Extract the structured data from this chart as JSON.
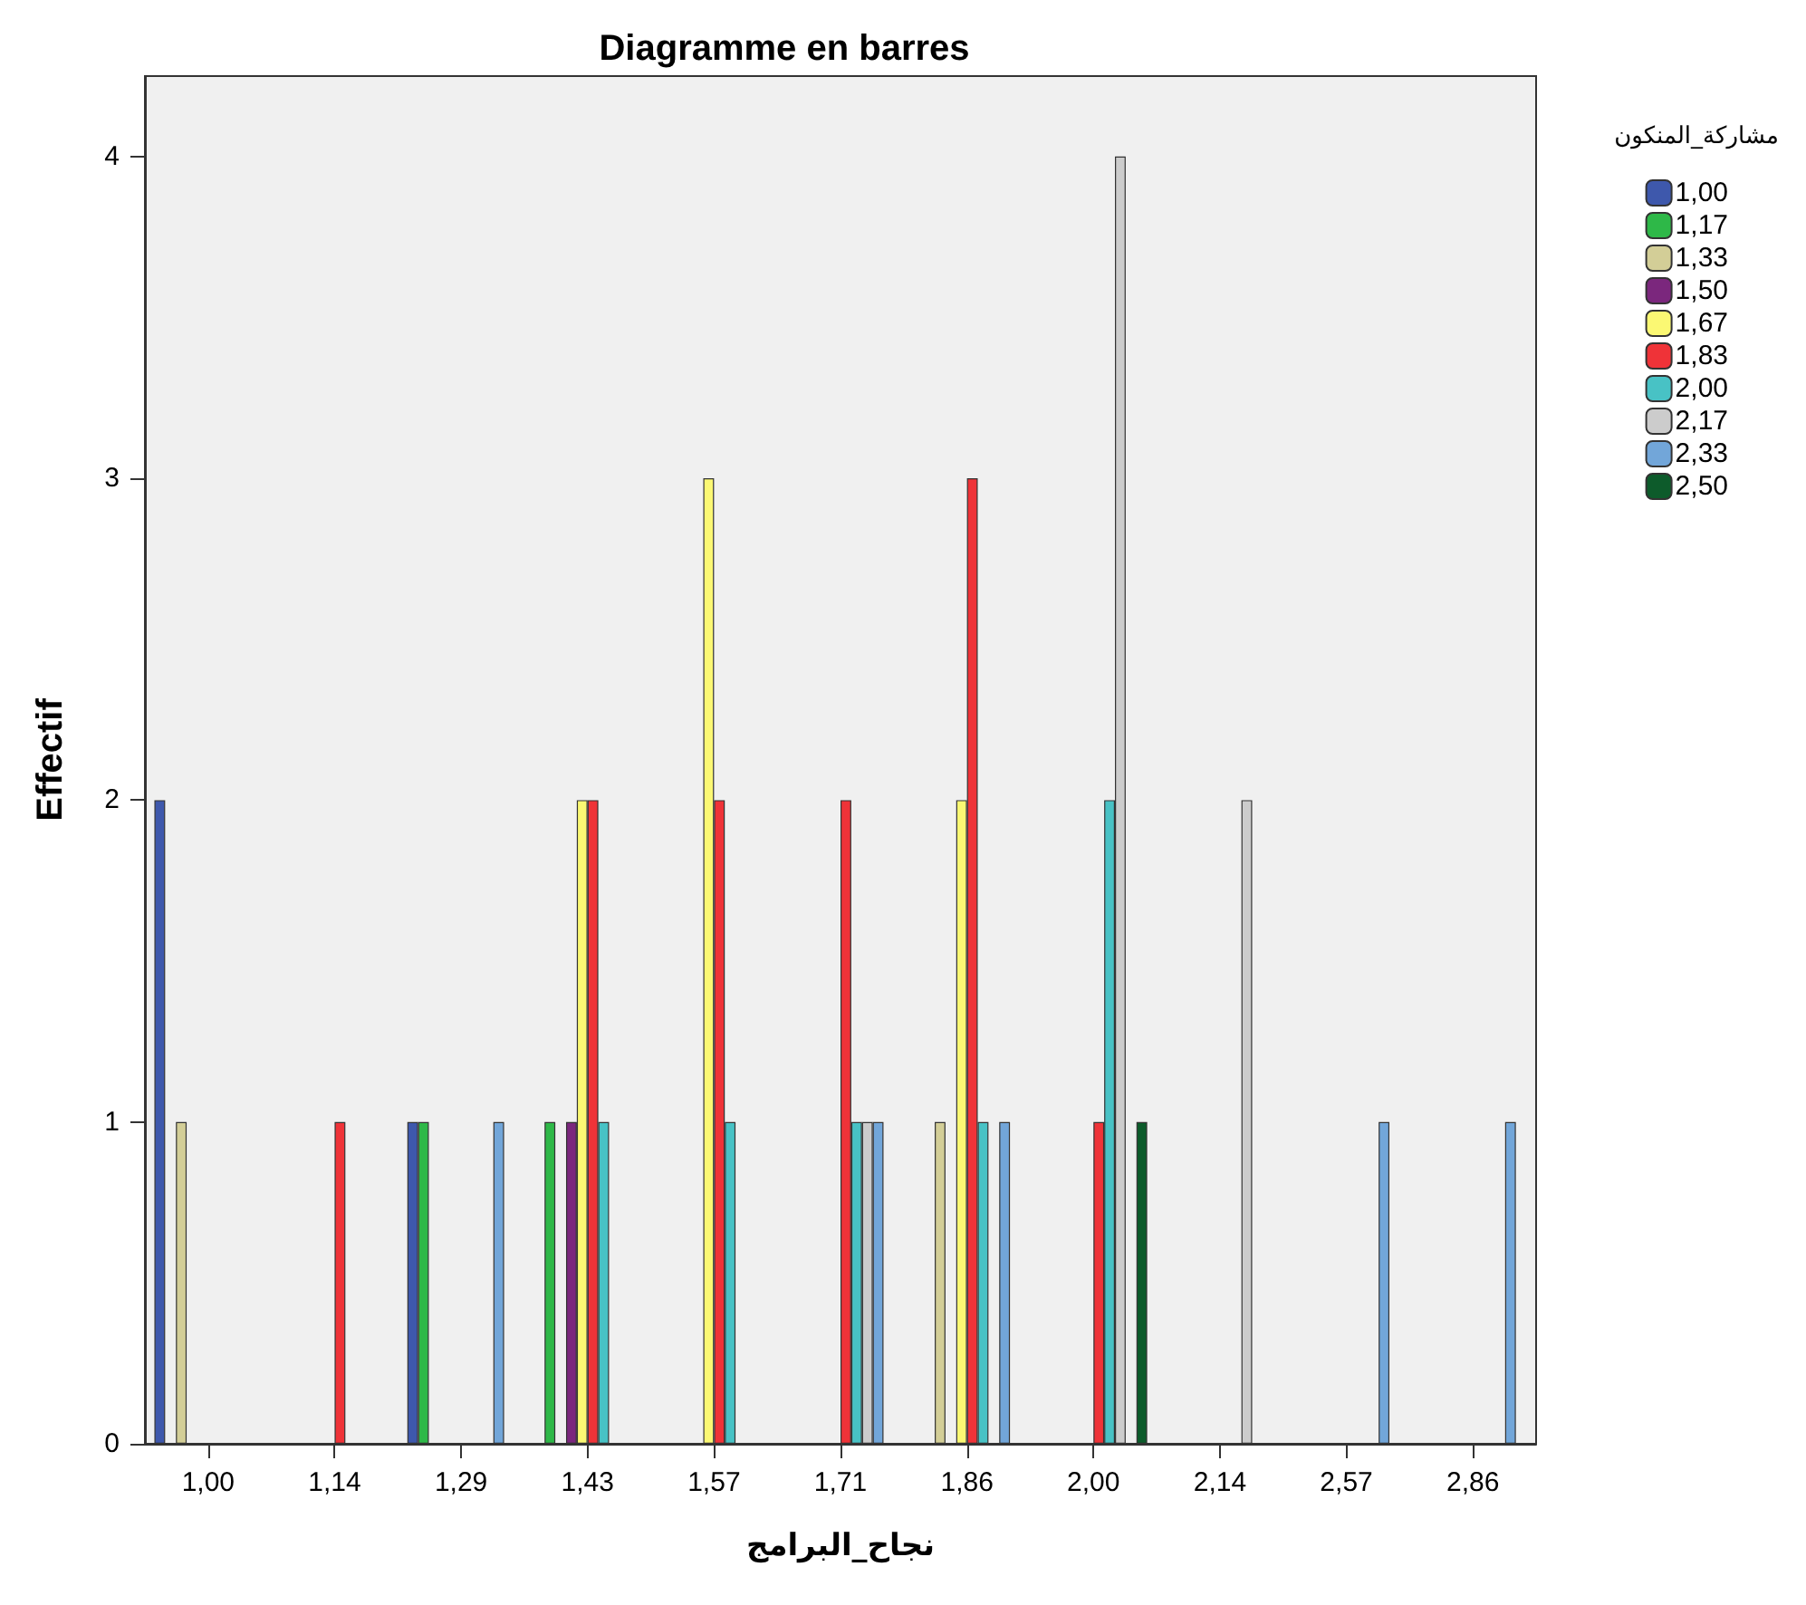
{
  "chart_data": {
    "type": "bar",
    "title": "Diagramme en barres",
    "xlabel": "نجاح_البرامج",
    "ylabel": "Effectif",
    "legend_title": "مشاركة_المنكون",
    "categories": [
      "1,00",
      "1,14",
      "1,29",
      "1,43",
      "1,57",
      "1,71",
      "1,86",
      "2,00",
      "2,14",
      "2,57",
      "2,86"
    ],
    "series": [
      {
        "name": "1,00",
        "color": "#3e58ac",
        "values": [
          2,
          null,
          1,
          null,
          null,
          null,
          null,
          null,
          null,
          null,
          null
        ]
      },
      {
        "name": "1,17",
        "color": "#2eb848",
        "values": [
          null,
          null,
          1,
          1,
          null,
          null,
          null,
          null,
          null,
          null,
          null
        ]
      },
      {
        "name": "1,33",
        "color": "#d3ce97",
        "values": [
          1,
          null,
          null,
          null,
          null,
          null,
          1,
          null,
          null,
          null,
          null
        ]
      },
      {
        "name": "1,50",
        "color": "#7b277d",
        "values": [
          null,
          null,
          null,
          1,
          null,
          null,
          null,
          null,
          null,
          null,
          null
        ]
      },
      {
        "name": "1,67",
        "color": "#fbf873",
        "values": [
          null,
          null,
          null,
          2,
          3,
          null,
          2,
          null,
          null,
          null,
          null
        ]
      },
      {
        "name": "1,83",
        "color": "#ef3338",
        "values": [
          null,
          1,
          null,
          2,
          2,
          2,
          3,
          1,
          null,
          null,
          null
        ]
      },
      {
        "name": "2,00",
        "color": "#48c2c5",
        "values": [
          null,
          null,
          null,
          1,
          1,
          1,
          1,
          2,
          null,
          null,
          null
        ]
      },
      {
        "name": "2,17",
        "color": "#cccccc",
        "values": [
          null,
          null,
          null,
          null,
          null,
          1,
          null,
          4,
          2,
          null,
          null
        ]
      },
      {
        "name": "2,33",
        "color": "#72a6d9",
        "values": [
          null,
          null,
          1,
          null,
          null,
          1,
          1,
          null,
          null,
          1,
          1
        ]
      },
      {
        "name": "2,50",
        "color": "#0d5b2b",
        "values": [
          null,
          null,
          null,
          null,
          null,
          null,
          null,
          1,
          null,
          null,
          null
        ]
      }
    ],
    "ylim": [
      0,
      4.25
    ],
    "yticks": [
      0,
      1,
      2,
      3,
      4
    ],
    "grid": false,
    "legend": "top right"
  }
}
